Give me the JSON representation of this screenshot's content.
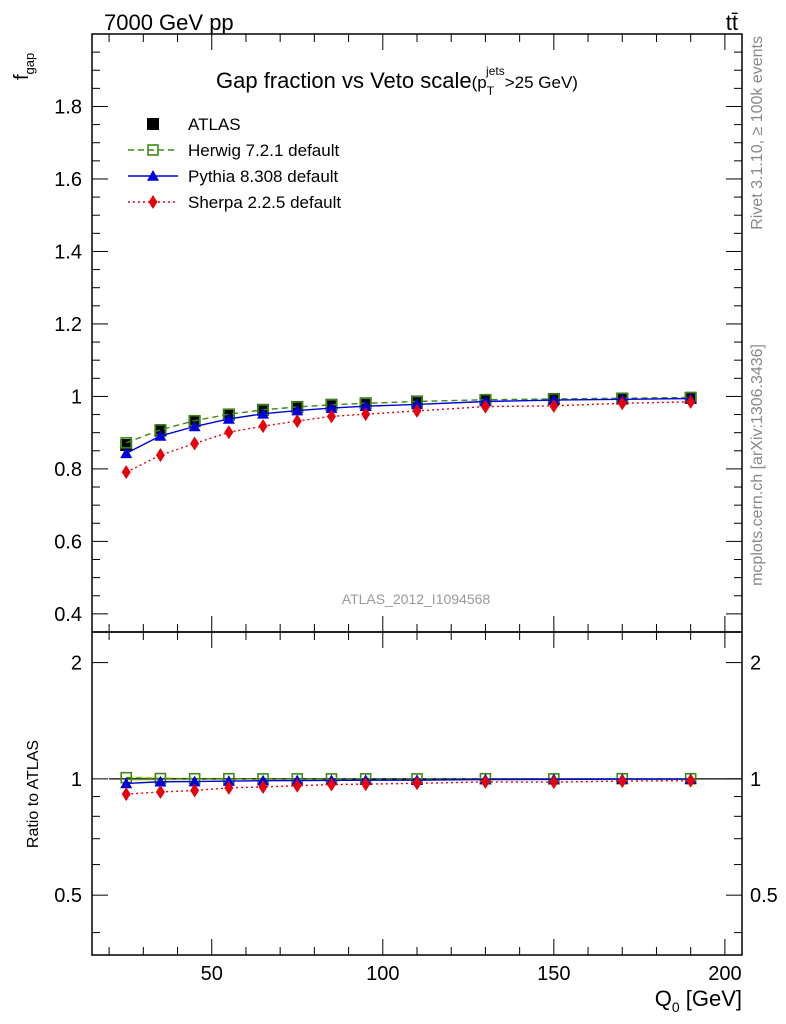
{
  "header": {
    "energy_label": "7000 GeV pp",
    "process_label": "tt̄",
    "side_top": "Rivet 3.1.10, ≥ 100k events",
    "side_bottom": "mcplots.cern.ch [arXiv:1306.3436]",
    "watermark": "ATLAS_2012_I1094568"
  },
  "chart_data": [
    {
      "type": "scatter",
      "title_main": "Gap fraction vs Veto scale",
      "title_cut": "(p",
      "title_sup": "jets",
      "title_sub": "T",
      "title_rest": ">25 GeV)",
      "ylabel": "f",
      "ylabel_sub": "gap",
      "xlim": [
        15,
        205
      ],
      "ylim": [
        0.35,
        2.0
      ],
      "yticks": [
        0.4,
        0.6,
        0.8,
        1.0,
        1.2,
        1.4,
        1.6,
        1.8
      ],
      "ytick_labels": [
        "0.4",
        "0.6",
        "0.8",
        "1",
        "1.2",
        "1.4",
        "1.6",
        "1.8"
      ],
      "legend_position": "top-left",
      "x": [
        25,
        35,
        45,
        55,
        65,
        75,
        85,
        95,
        110,
        130,
        150,
        170,
        190
      ],
      "series": [
        {
          "name": "ATLAS",
          "color": "#000000",
          "marker": "square",
          "values": [
            0.866,
            0.906,
            0.932,
            0.95,
            0.963,
            0.971,
            0.977,
            0.981,
            0.986,
            0.99,
            0.993,
            0.994,
            0.996
          ]
        },
        {
          "name": "Herwig 7.2.1 default",
          "color": "#3a8a14",
          "marker": "open-square",
          "line": "dashed",
          "values": [
            0.872,
            0.908,
            0.933,
            0.951,
            0.963,
            0.971,
            0.977,
            0.981,
            0.986,
            0.991,
            0.993,
            0.995,
            0.997
          ]
        },
        {
          "name": "Pythia 8.308 default",
          "color": "#0000dd",
          "marker": "triangle",
          "line": "solid",
          "values": [
            0.843,
            0.891,
            0.917,
            0.938,
            0.952,
            0.961,
            0.968,
            0.973,
            0.978,
            0.986,
            0.99,
            0.992,
            0.994
          ]
        },
        {
          "name": "Sherpa 2.2.5 default",
          "color": "#e8000b",
          "marker": "diamond",
          "line": "dotted",
          "values": [
            0.791,
            0.838,
            0.87,
            0.901,
            0.918,
            0.932,
            0.945,
            0.951,
            0.96,
            0.972,
            0.974,
            0.981,
            0.985
          ]
        }
      ]
    },
    {
      "type": "scatter",
      "ylabel": "Ratio to ATLAS",
      "xlabel": "Q",
      "xlabel_sub": "0",
      "xlabel_unit": " [GeV]",
      "xlim": [
        15,
        205
      ],
      "ylim": [
        0.35,
        2.4
      ],
      "scale": "log",
      "xticks": [
        50,
        100,
        150,
        200
      ],
      "xtick_labels": [
        "50",
        "100",
        "150",
        "200"
      ],
      "yticks": [
        0.5,
        1,
        2
      ],
      "ytick_labels": [
        "0.5",
        "1",
        "2"
      ],
      "x": [
        25,
        35,
        45,
        55,
        65,
        75,
        85,
        95,
        110,
        130,
        150,
        170,
        190
      ],
      "series": [
        {
          "name": "Herwig 7.2.1 default",
          "color": "#3a8a14",
          "marker": "open-square",
          "line": "dashed",
          "values": [
            1.007,
            1.002,
            1.001,
            1.001,
            1.0,
            1.0,
            1.0,
            1.0,
            1.0,
            1.001,
            1.0,
            1.001,
            1.001
          ]
        },
        {
          "name": "Pythia 8.308 default",
          "color": "#0000dd",
          "marker": "triangle",
          "line": "solid",
          "values": [
            0.973,
            0.983,
            0.984,
            0.987,
            0.989,
            0.99,
            0.991,
            0.992,
            0.992,
            0.996,
            0.997,
            0.998,
            0.998
          ]
        },
        {
          "name": "Sherpa 2.2.5 default",
          "color": "#e8000b",
          "marker": "diamond",
          "line": "dotted",
          "values": [
            0.913,
            0.925,
            0.933,
            0.948,
            0.953,
            0.96,
            0.967,
            0.969,
            0.974,
            0.982,
            0.981,
            0.987,
            0.989
          ]
        }
      ]
    }
  ]
}
